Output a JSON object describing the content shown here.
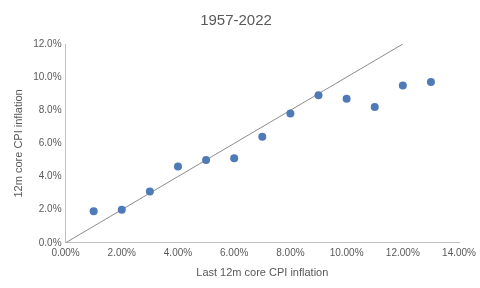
{
  "chart_data": {
    "type": "scatter",
    "title": "1957-2022",
    "x_label": "Last 12m core CPI inflation",
    "y_label": "12m core CPI inflation",
    "x": [
      1,
      2,
      3,
      4,
      5,
      6,
      7,
      8,
      9,
      10,
      11,
      12,
      13
    ],
    "series": [
      {
        "color": "#4f7ab8",
        "marker": "circle",
        "values": [
          1.9,
          2.0,
          3.1,
          4.6,
          5.0,
          5.1,
          6.4,
          7.8,
          8.9,
          8.7,
          8.2,
          9.5,
          9.7
        ]
      },
      {
        "type": "line",
        "color": "#8c8c8c",
        "line_style": "solid",
        "x": [
          0,
          12
        ],
        "values": [
          0,
          12
        ]
      }
    ],
    "xlim": [
      0,
      14
    ],
    "xticks": [
      {
        "value": 0,
        "label": "0.00%"
      },
      {
        "value": 2,
        "label": "2.00%"
      },
      {
        "value": 4,
        "label": "4.00%"
      },
      {
        "value": 6,
        "label": "6.00%"
      },
      {
        "value": 8,
        "label": "8.00%"
      },
      {
        "value": 10,
        "label": "10.00%"
      },
      {
        "value": 12,
        "label": "12.00%"
      },
      {
        "value": 14,
        "label": "14.00%"
      }
    ],
    "ylim": [
      0,
      12
    ],
    "yticks": [
      {
        "value": 0,
        "label": "0.0%"
      },
      {
        "value": 2,
        "label": "2.0%"
      },
      {
        "value": 4,
        "label": "4.0%"
      },
      {
        "value": 6,
        "label": "6.0%"
      },
      {
        "value": 8,
        "label": "8.0%"
      },
      {
        "value": 10,
        "label": "10.0%"
      },
      {
        "value": 12,
        "label": "12.0%"
      }
    ],
    "grid": false
  }
}
